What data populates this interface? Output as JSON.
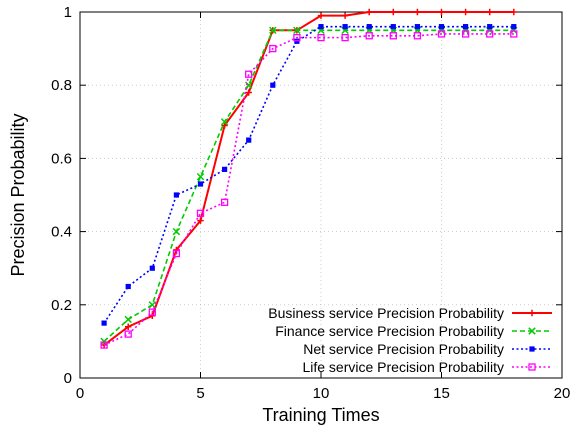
{
  "chart_data": {
    "type": "line",
    "title": "",
    "xlabel": "Training Times",
    "ylabel": "Precision Probability",
    "xlim": [
      0,
      20
    ],
    "ylim": [
      0,
      1
    ],
    "xticks": [
      0,
      5,
      10,
      15,
      20
    ],
    "yticks": [
      0,
      0.2,
      0.4,
      0.6,
      0.8,
      1
    ],
    "xtick_labels": [
      "0",
      "5",
      "10",
      "15",
      "20"
    ],
    "ytick_labels": [
      "0",
      "0.2",
      "0.4",
      "0.6",
      "0.8",
      "1"
    ],
    "grid": true,
    "legend_position": "bottom-right",
    "x": [
      1,
      2,
      3,
      4,
      5,
      6,
      7,
      8,
      9,
      10,
      11,
      12,
      13,
      14,
      15,
      16,
      17,
      18
    ],
    "series": [
      {
        "name": "Business service Precision Probability",
        "color": "#ff0000",
        "dash": "solid",
        "marker": "plus",
        "values": [
          0.09,
          0.14,
          0.17,
          0.35,
          0.43,
          0.69,
          0.78,
          0.95,
          0.95,
          0.99,
          0.99,
          1.0,
          1.0,
          1.0,
          1.0,
          1.0,
          1.0,
          1.0
        ]
      },
      {
        "name": "Finance service Precision Probability",
        "color": "#00cc00",
        "dash": "dashed",
        "marker": "x",
        "values": [
          0.1,
          0.16,
          0.2,
          0.4,
          0.55,
          0.7,
          0.8,
          0.95,
          0.95,
          0.95,
          0.95,
          0.95,
          0.95,
          0.95,
          0.95,
          0.95,
          0.95,
          0.95
        ]
      },
      {
        "name": "Net service Precision Probability",
        "color": "#0000ff",
        "dash": "dotted",
        "marker": "filled-square",
        "values": [
          0.15,
          0.25,
          0.3,
          0.5,
          0.53,
          0.57,
          0.65,
          0.8,
          0.92,
          0.96,
          0.96,
          0.96,
          0.96,
          0.96,
          0.96,
          0.96,
          0.96,
          0.96
        ]
      },
      {
        "name": "Life service Precision Probability",
        "color": "#ff00ff",
        "dash": "dotted",
        "marker": "open-square",
        "values": [
          0.09,
          0.12,
          0.18,
          0.34,
          0.45,
          0.48,
          0.83,
          0.9,
          0.93,
          0.93,
          0.93,
          0.935,
          0.935,
          0.935,
          0.94,
          0.94,
          0.94,
          0.94
        ]
      }
    ]
  }
}
